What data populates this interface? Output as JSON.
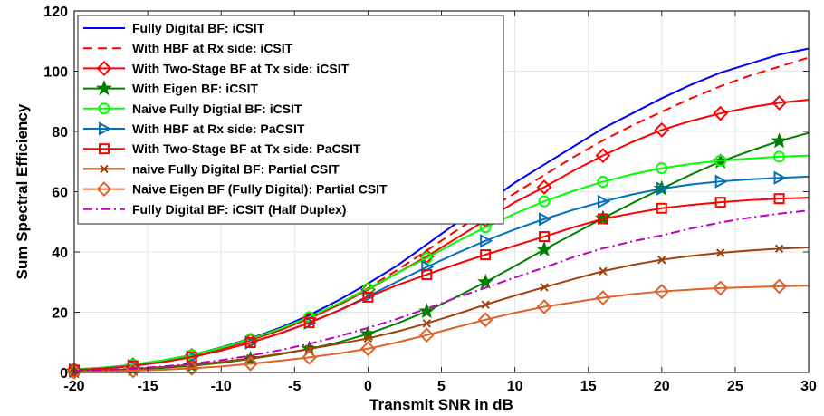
{
  "chart_data": {
    "type": "line",
    "title": "",
    "xlabel": "Transmit SNR in dB",
    "ylabel": "Sum Spectral Efficiency",
    "xlim": [
      -20,
      30
    ],
    "ylim": [
      0,
      120
    ],
    "xticks": [
      "-20",
      "-15",
      "-10",
      "-5",
      "0",
      "5",
      "10",
      "15",
      "20",
      "25",
      "30"
    ],
    "yticks": [
      "0",
      "20",
      "40",
      "60",
      "80",
      "100",
      "120"
    ],
    "grid": true,
    "legend_position": "top-left",
    "series": [
      {
        "name": "Fully Digital BF: iCSIT",
        "color": "#0000ff",
        "dash": "",
        "marker": "none",
        "x": [
          -20,
          -18,
          -16,
          -14,
          -12,
          -10,
          -8,
          -6,
          -4,
          -2,
          0,
          2,
          4,
          6,
          8,
          10,
          12,
          14,
          16,
          18,
          20,
          22,
          24,
          26,
          28,
          30
        ],
        "y": [
          1,
          1.6,
          2.6,
          4,
          5.8,
          8.3,
          11.3,
          14.8,
          19,
          24,
          29.5,
          35.5,
          42.5,
          49.5,
          56,
          63,
          69,
          75,
          81,
          86,
          91,
          95.5,
          99.5,
          102.5,
          105.5,
          107.5
        ]
      },
      {
        "name": "With HBF at Rx side: iCSIT",
        "color": "#ff0000",
        "dash": "10,6",
        "marker": "none",
        "x": [
          -20,
          -18,
          -16,
          -14,
          -12,
          -10,
          -8,
          -6,
          -4,
          -2,
          0,
          2,
          4,
          6,
          8,
          10,
          12,
          14,
          16,
          18,
          20,
          22,
          24,
          26,
          28,
          30
        ],
        "y": [
          1,
          1.5,
          2.4,
          3.8,
          5.6,
          7.9,
          10.8,
          14.2,
          18.2,
          22.8,
          28,
          34,
          40.5,
          47,
          53.5,
          59.5,
          65.5,
          71.5,
          77,
          82,
          86.5,
          91,
          95,
          98.5,
          101.5,
          104.5
        ]
      },
      {
        "name": "With Two-Stage BF at Tx side: iCSIT",
        "color": "#ff0000",
        "dash": "",
        "marker": "diamond",
        "x": [
          -20,
          -18,
          -16,
          -14,
          -12,
          -10,
          -8,
          -6,
          -4,
          -2,
          0,
          2,
          4,
          6,
          8,
          10,
          12,
          14,
          16,
          18,
          20,
          22,
          24,
          26,
          28,
          30
        ],
        "y": [
          1,
          1.5,
          2.5,
          3.8,
          5.6,
          7.9,
          10.7,
          14,
          17.9,
          22.4,
          27.5,
          33,
          38.5,
          44.5,
          50.5,
          56.5,
          61.5,
          67,
          72,
          76.5,
          80.5,
          83.5,
          86,
          88,
          89.5,
          90.5
        ]
      },
      {
        "name": "With Eigen BF: iCSIT",
        "color": "#008000",
        "dash": "",
        "marker": "star",
        "x": [
          -20,
          -18,
          -16,
          -14,
          -12,
          -10,
          -8,
          -6,
          -4,
          -2,
          0,
          2,
          4,
          6,
          8,
          10,
          12,
          14,
          16,
          18,
          20,
          22,
          24,
          26,
          28,
          30
        ],
        "y": [
          0.3,
          0.6,
          1,
          1.5,
          2.2,
          3.2,
          4.5,
          6,
          7.8,
          10,
          12.8,
          16.3,
          20.3,
          25,
          30,
          35.3,
          40.8,
          46,
          51.2,
          56.2,
          61,
          65.7,
          70,
          73.5,
          76.8,
          79.5
        ]
      },
      {
        "name": "Naive Fully Digtial BF: iCSIT",
        "color": "#00ff00",
        "dash": "",
        "marker": "circle",
        "x": [
          -20,
          -18,
          -16,
          -14,
          -12,
          -10,
          -8,
          -6,
          -4,
          -2,
          0,
          2,
          4,
          6,
          8,
          10,
          12,
          14,
          16,
          18,
          20,
          22,
          24,
          26,
          28,
          30
        ],
        "y": [
          1,
          1.6,
          2.6,
          4,
          5.8,
          8.2,
          11.1,
          14.5,
          18.4,
          22.9,
          27.8,
          33,
          38,
          43.3,
          48.2,
          52.7,
          56.8,
          60.3,
          63.3,
          65.8,
          67.8,
          69.2,
          70.3,
          71,
          71.6,
          72
        ]
      },
      {
        "name": "With HBF at Rx side: PaCSIT",
        "color": "#0072bd",
        "dash": "",
        "marker": "triangle-right",
        "x": [
          -20,
          -18,
          -16,
          -14,
          -12,
          -10,
          -8,
          -6,
          -4,
          -2,
          0,
          2,
          4,
          6,
          8,
          10,
          12,
          14,
          16,
          18,
          20,
          22,
          24,
          26,
          28,
          30
        ],
        "y": [
          0.8,
          1.3,
          2.2,
          3.4,
          5.1,
          7.3,
          9.9,
          12.9,
          16.5,
          20.6,
          25.3,
          30.2,
          35,
          39.5,
          43.7,
          47.5,
          50.9,
          54,
          56.7,
          59.1,
          61,
          62.4,
          63.4,
          64.1,
          64.6,
          65
        ]
      },
      {
        "name": "With Two-Stage BF at Tx side: PaCSIT",
        "color": "#ff0000",
        "dash": "",
        "marker": "square",
        "x": [
          -20,
          -18,
          -16,
          -14,
          -12,
          -10,
          -8,
          -6,
          -4,
          -2,
          0,
          2,
          4,
          6,
          8,
          10,
          12,
          14,
          16,
          18,
          20,
          22,
          24,
          26,
          28,
          30
        ],
        "y": [
          0.8,
          1.3,
          2.2,
          3.4,
          5.1,
          7.3,
          9.9,
          13,
          16.5,
          20.5,
          25,
          29,
          32.5,
          35.9,
          39.1,
          42.1,
          45.1,
          48.2,
          51,
          52.8,
          54.5,
          55.6,
          56.5,
          57.2,
          57.7,
          58
        ]
      },
      {
        "name": "naive Fully Digital BF: Partial CSIT",
        "color": "#a0400a",
        "dash": "",
        "marker": "x",
        "x": [
          -20,
          -18,
          -16,
          -14,
          -12,
          -10,
          -8,
          -6,
          -4,
          -2,
          0,
          2,
          4,
          6,
          8,
          10,
          12,
          14,
          16,
          18,
          20,
          22,
          24,
          26,
          28,
          30
        ],
        "y": [
          0.5,
          0.8,
          1.2,
          1.8,
          2.6,
          3.5,
          4.7,
          6.2,
          7.8,
          9.5,
          11.3,
          13.6,
          16.3,
          19.3,
          22.5,
          25.5,
          28.3,
          31,
          33.6,
          35.7,
          37.4,
          38.7,
          39.7,
          40.5,
          41.1,
          41.5
        ]
      },
      {
        "name": "Naive Eigen BF (Fully Digital): Partial CSIT",
        "color": "#e0622a",
        "dash": "",
        "marker": "diamond",
        "x": [
          -20,
          -18,
          -16,
          -14,
          -12,
          -10,
          -8,
          -6,
          -4,
          -2,
          0,
          2,
          4,
          6,
          8,
          10,
          12,
          14,
          16,
          18,
          20,
          22,
          24,
          26,
          28,
          30
        ],
        "y": [
          0.2,
          0.4,
          0.6,
          0.9,
          1.4,
          2,
          2.9,
          3.9,
          5,
          6.3,
          7.9,
          10,
          12.4,
          15,
          17.5,
          19.8,
          21.8,
          23.3,
          24.8,
          26,
          26.9,
          27.5,
          28,
          28.3,
          28.6,
          28.8
        ]
      },
      {
        "name": "Fully Digital BF: iCSIT (Half Duplex)",
        "color": "#c000c0",
        "dash": "10,4,2,4",
        "marker": "none",
        "x": [
          -20,
          -18,
          -16,
          -14,
          -12,
          -10,
          -8,
          -6,
          -4,
          -2,
          0,
          2,
          4,
          6,
          8,
          10,
          12,
          14,
          16,
          18,
          20,
          22,
          24,
          26,
          28,
          30
        ],
        "y": [
          0.5,
          0.8,
          1.3,
          2,
          2.9,
          4.1,
          5.6,
          7.4,
          9.5,
          12,
          14.8,
          17.8,
          21.2,
          24.8,
          28.1,
          31.5,
          34.8,
          38.3,
          41.2,
          43.5,
          45.5,
          47.8,
          49.8,
          51.4,
          52.7,
          53.8
        ]
      }
    ]
  }
}
